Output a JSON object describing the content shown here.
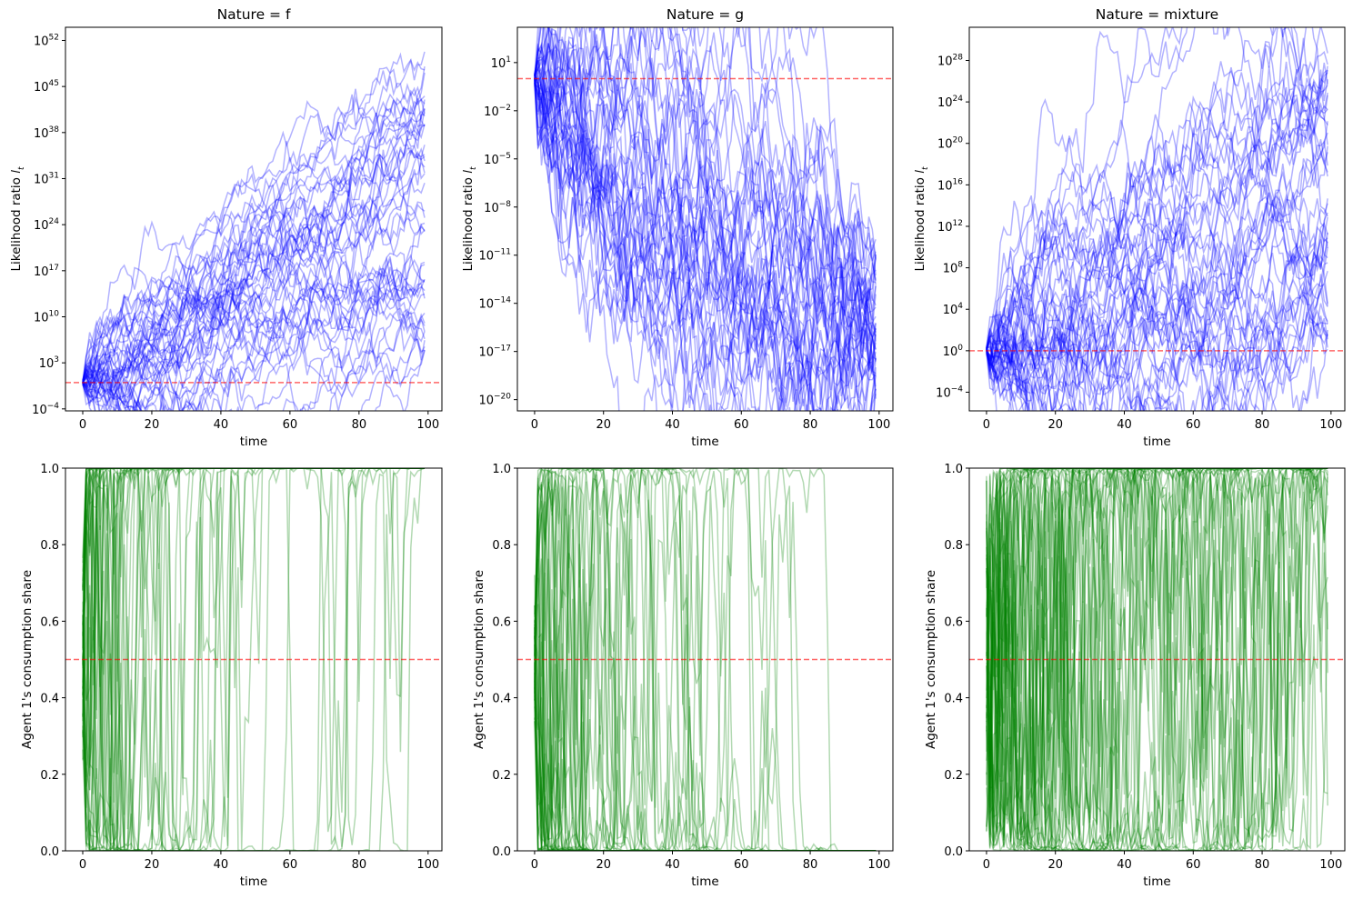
{
  "chart_data": [
    {
      "type": "line",
      "title": "Nature = f",
      "xlabel": "time",
      "ylabel": "Likelihood ratio",
      "ylabel_symbol": "l",
      "ylabel_subscript": "t",
      "yscale": "log",
      "xlim": [
        -5,
        104
      ],
      "ylim_log10": [
        -4.3,
        54
      ],
      "xticks": [
        0,
        20,
        40,
        60,
        80,
        100
      ],
      "yticks": [
        {
          "base": "10",
          "exp": "52",
          "v": 52
        },
        {
          "base": "10",
          "exp": "45",
          "v": 45
        },
        {
          "base": "10",
          "exp": "38",
          "v": 38
        },
        {
          "base": "10",
          "exp": "31",
          "v": 31
        },
        {
          "base": "10",
          "exp": "24",
          "v": 24
        },
        {
          "base": "10",
          "exp": "17",
          "v": 17
        },
        {
          "base": "10",
          "exp": "10",
          "v": 10
        },
        {
          "base": "10",
          "exp": "3",
          "v": 3
        },
        {
          "base": "10",
          "exp": "−4",
          "v": -4
        }
      ],
      "series_color": "#0000ff",
      "series_alpha": 0.3,
      "n_series": 50,
      "t_max": 99,
      "start_log10": 0,
      "end_log10_range": [
        4,
        51
      ],
      "hline": {
        "y_log10": 0,
        "color": "#ff0000"
      }
    },
    {
      "type": "line",
      "title": "Nature = g",
      "xlabel": "time",
      "ylabel": "Likelihood ratio",
      "ylabel_symbol": "l",
      "ylabel_subscript": "t",
      "yscale": "log",
      "xlim": [
        -5,
        104
      ],
      "ylim_log10": [
        -20.7,
        3.2
      ],
      "xticks": [
        0,
        20,
        40,
        60,
        80,
        100
      ],
      "yticks": [
        {
          "base": "10",
          "exp": "1",
          "v": 1
        },
        {
          "base": "10",
          "exp": "−2",
          "v": -2
        },
        {
          "base": "10",
          "exp": "−5",
          "v": -5
        },
        {
          "base": "10",
          "exp": "−8",
          "v": -8
        },
        {
          "base": "10",
          "exp": "−11",
          "v": -11
        },
        {
          "base": "10",
          "exp": "−14",
          "v": -14
        },
        {
          "base": "10",
          "exp": "−17",
          "v": -17
        },
        {
          "base": "10",
          "exp": "−20",
          "v": -20
        }
      ],
      "series_color": "#0000ff",
      "series_alpha": 0.3,
      "n_series": 50,
      "t_max": 99,
      "start_log10": 0,
      "end_log10_range": [
        -20,
        -10
      ],
      "hline": {
        "y_log10": 0,
        "color": "#ff0000"
      }
    },
    {
      "type": "line",
      "title": "Nature = mixture",
      "xlabel": "time",
      "ylabel": "Likelihood ratio",
      "ylabel_symbol": "l",
      "ylabel_subscript": "t",
      "yscale": "log",
      "xlim": [
        -5,
        104
      ],
      "ylim_log10": [
        -5.8,
        31.2
      ],
      "xticks": [
        0,
        20,
        40,
        60,
        80,
        100
      ],
      "yticks": [
        {
          "base": "10",
          "exp": "28",
          "v": 28
        },
        {
          "base": "10",
          "exp": "24",
          "v": 24
        },
        {
          "base": "10",
          "exp": "20",
          "v": 20
        },
        {
          "base": "10",
          "exp": "16",
          "v": 16
        },
        {
          "base": "10",
          "exp": "12",
          "v": 12
        },
        {
          "base": "10",
          "exp": "8",
          "v": 8
        },
        {
          "base": "10",
          "exp": "4",
          "v": 4
        },
        {
          "base": "10",
          "exp": "0",
          "v": 0
        },
        {
          "base": "10",
          "exp": "−4",
          "v": -4
        }
      ],
      "series_color": "#0000ff",
      "series_alpha": 0.3,
      "n_series": 50,
      "t_max": 99,
      "start_log10": 0,
      "end_log10_range": [
        0,
        29
      ],
      "hline": {
        "y_log10": 0,
        "color": "#ff0000"
      }
    },
    {
      "type": "line",
      "title": "",
      "xlabel": "time",
      "ylabel": "Agent 1's consumption share",
      "yscale": "linear",
      "xlim": [
        -5,
        104
      ],
      "ylim": [
        0,
        1
      ],
      "xticks": [
        0,
        20,
        40,
        60,
        80,
        100
      ],
      "yticks": [
        "0.0",
        "0.2",
        "0.4",
        "0.6",
        "0.8",
        "1.0"
      ],
      "series_color": "#008000",
      "series_alpha": 0.3,
      "n_series": 50,
      "t_max": 99,
      "behavior": "rises to 1 within about 20 periods",
      "hline": {
        "y": 0.5,
        "color": "#ff0000"
      }
    },
    {
      "type": "line",
      "title": "",
      "xlabel": "time",
      "ylabel": "Agent 1's consumption share",
      "yscale": "linear",
      "xlim": [
        -5,
        104
      ],
      "ylim": [
        0,
        1
      ],
      "xticks": [
        0,
        20,
        40,
        60,
        80,
        100
      ],
      "yticks": [
        "0.0",
        "0.2",
        "0.4",
        "0.6",
        "0.8",
        "1.0"
      ],
      "series_color": "#008000",
      "series_alpha": 0.3,
      "n_series": 50,
      "t_max": 99,
      "behavior": "decays to 0 within about 40 periods",
      "hline": {
        "y": 0.5,
        "color": "#ff0000"
      }
    },
    {
      "type": "line",
      "title": "",
      "xlabel": "time",
      "ylabel": "Agent 1's consumption share",
      "yscale": "linear",
      "xlim": [
        -5,
        104
      ],
      "ylim": [
        0,
        1
      ],
      "xticks": [
        0,
        20,
        40,
        60,
        80,
        100
      ],
      "yticks": [
        "0.0",
        "0.2",
        "0.4",
        "0.6",
        "0.8",
        "1.0"
      ],
      "series_color": "#008000",
      "series_alpha": 0.3,
      "n_series": 50,
      "t_max": 99,
      "behavior": "oscillates between 0 and 1",
      "hline": {
        "y": 0.5,
        "color": "#ff0000"
      }
    }
  ]
}
